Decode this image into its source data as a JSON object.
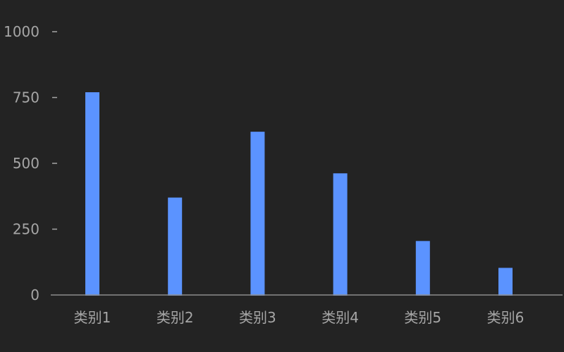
{
  "chart_data": {
    "type": "bar",
    "title": "",
    "xlabel": "",
    "ylabel": "",
    "categories": [
      "类别1",
      "类别2",
      "类别3",
      "类别4",
      "类别5",
      "类别6"
    ],
    "values": [
      770,
      370,
      620,
      462,
      205,
      103
    ],
    "ylim": [
      0,
      1000
    ],
    "yticks": [
      0,
      250,
      500,
      750,
      1000
    ],
    "ytick_labels": [
      "0",
      "250",
      "500",
      "750",
      "1000"
    ],
    "grid": false,
    "legend": "none",
    "colors": {
      "background": "#232323",
      "bar": "#5b93ff",
      "axis": "#8c8c8c",
      "text": "#a6a6a6"
    }
  }
}
